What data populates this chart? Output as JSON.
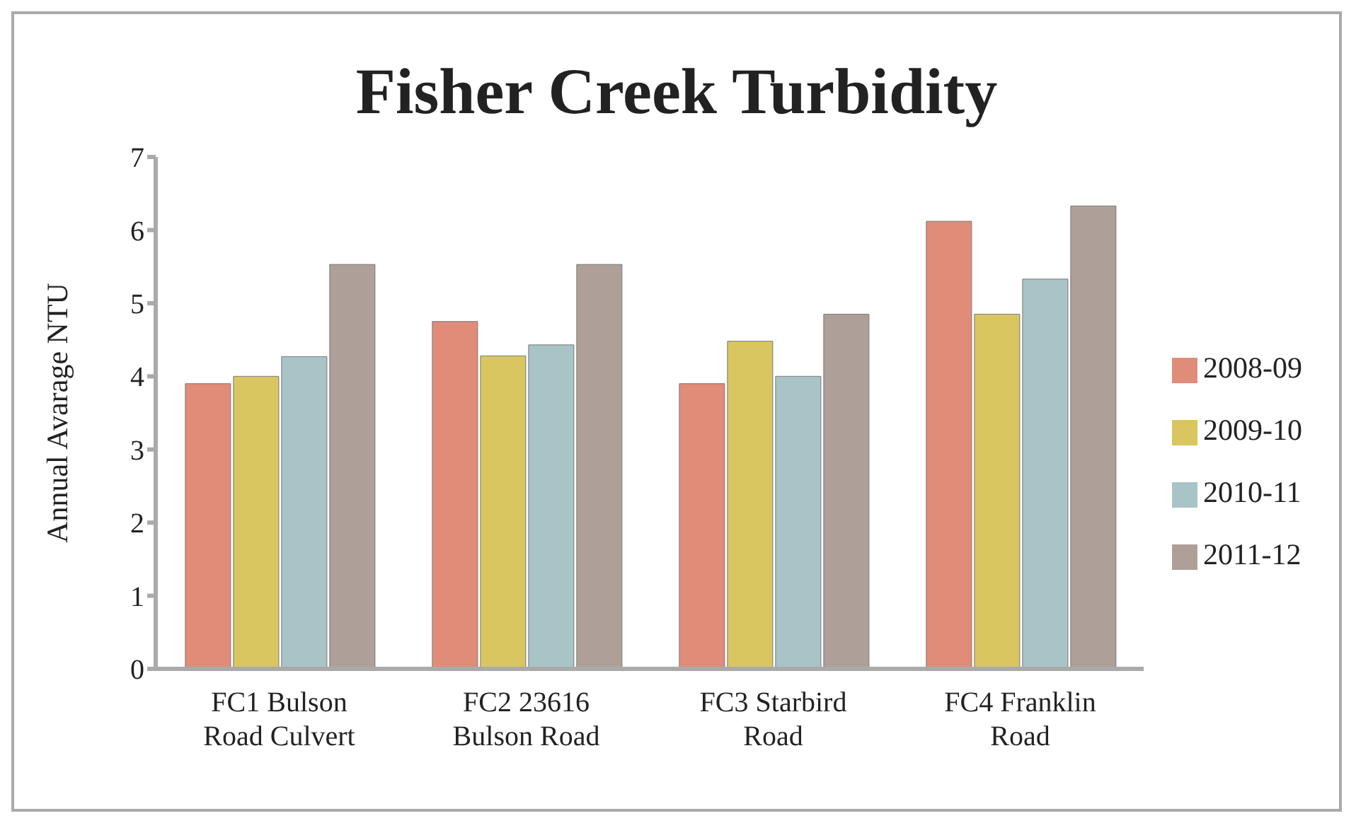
{
  "chart_data": {
    "type": "bar",
    "title": "Fisher Creek Turbidity",
    "ylabel": "Annual Avarage NTU",
    "categories": [
      "FC1 Bulson Road Culvert",
      "FC2 23616 Bulson Road",
      "FC3 Starbird Road",
      "FC4 Franklin Road"
    ],
    "series": [
      {
        "name": "2008-09",
        "color": "#e08c78",
        "values": [
          3.9,
          4.75,
          3.9,
          6.12
        ]
      },
      {
        "name": "2009-10",
        "color": "#d9c660",
        "values": [
          4.0,
          4.28,
          4.48,
          4.85
        ]
      },
      {
        "name": "2010-11",
        "color": "#a9c4c6",
        "values": [
          4.27,
          4.43,
          4.0,
          5.33
        ]
      },
      {
        "name": "2011-12",
        "color": "#aea098",
        "values": [
          5.53,
          5.53,
          4.85,
          6.33
        ]
      }
    ],
    "ylim": [
      0,
      7
    ],
    "yticks": [
      0,
      1,
      2,
      3,
      4,
      5,
      6,
      7
    ],
    "legend": "right"
  }
}
